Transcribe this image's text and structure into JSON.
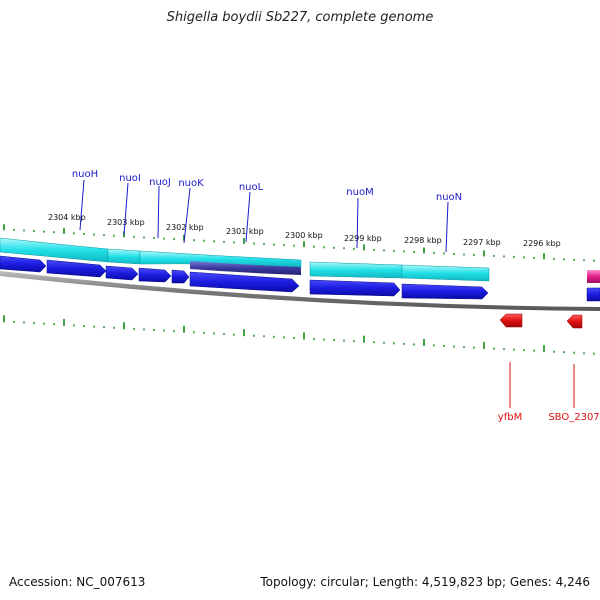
{
  "title": "Shigella boydii Sb227, complete genome",
  "accession": "Accession: NC_007613",
  "summary": "Topology: circular; Length: 4,519,823 bp; Genes: 4,246",
  "kbp_labels": [
    "2304 kbp",
    "2303 kbp",
    "2302 kbp",
    "2301 kbp",
    "2300 kbp",
    "2299 kbp",
    "2298 kbp",
    "2297 kbp",
    "2296 kbp"
  ],
  "genes_top": [
    "nuoH",
    "nuoI",
    "nuoJ",
    "nuoK",
    "nuoL",
    "nuoM",
    "nuoN"
  ],
  "genes_bottom": [
    "yfbM",
    "SBO_2307"
  ],
  "colors": {
    "tick": "#138a13",
    "top_label": "#1a1acc",
    "bottom_label": "#dd1111",
    "cyan": "#22e0e8",
    "blue_arrow": "#1c1ce0",
    "red_arrow": "#e01010",
    "magenta": "#e0208a",
    "backbone": "#888888"
  }
}
